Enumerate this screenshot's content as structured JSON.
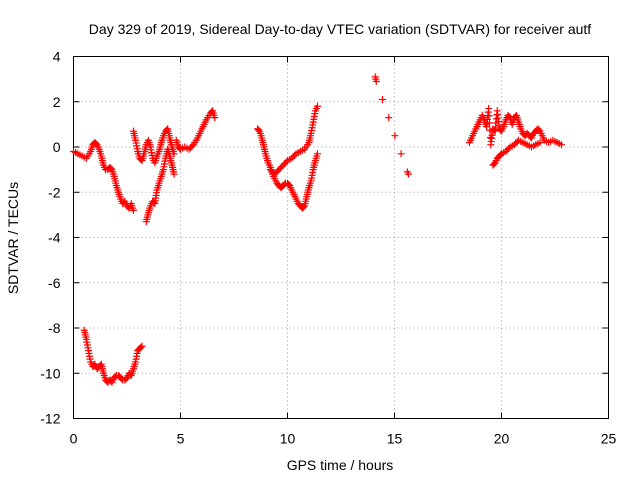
{
  "chart_data": {
    "type": "scatter",
    "title": "Day 329 of 2019, Sidereal Day-to-day VTEC variation (SDTVAR) for receiver autf",
    "xlabel": "GPS time / hours",
    "ylabel": "SDTVAR / TECUs",
    "xlim": [
      0,
      25
    ],
    "ylim": [
      -12,
      4
    ],
    "xticks": [
      "0",
      "5",
      "10",
      "15",
      "20",
      "25"
    ],
    "yticks": [
      "-12",
      "-10",
      "-8",
      "-6",
      "-4",
      "-2",
      "0",
      "2",
      "4"
    ],
    "grid": true,
    "marker": "plus",
    "color": "#ff0000",
    "series": [
      {
        "name": "SDTVAR",
        "segments": [
          [
            [
              0.0,
              -0.2
            ],
            [
              0.2,
              -0.3
            ],
            [
              0.4,
              -0.4
            ],
            [
              0.6,
              -0.5
            ],
            [
              0.8,
              -0.2
            ],
            [
              0.9,
              0.1
            ],
            [
              1.0,
              0.2
            ],
            [
              1.1,
              0.1
            ],
            [
              1.2,
              -0.1
            ],
            [
              1.3,
              -0.4
            ],
            [
              1.4,
              -0.8
            ],
            [
              1.5,
              -1.0
            ],
            [
              1.6,
              -1.0
            ],
            [
              1.7,
              -0.9
            ],
            [
              1.8,
              -1.0
            ],
            [
              1.9,
              -1.3
            ],
            [
              2.0,
              -1.7
            ],
            [
              2.1,
              -2.0
            ],
            [
              2.2,
              -2.3
            ],
            [
              2.3,
              -2.5
            ],
            [
              2.4,
              -2.4
            ],
            [
              2.5,
              -2.6
            ],
            [
              2.6,
              -2.7
            ],
            [
              2.7,
              -2.5
            ],
            [
              2.8,
              -2.8
            ]
          ],
          [
            [
              2.8,
              0.7
            ],
            [
              2.9,
              0.3
            ],
            [
              3.0,
              -0.2
            ],
            [
              3.1,
              -0.5
            ],
            [
              3.2,
              -0.6
            ],
            [
              3.3,
              -0.3
            ],
            [
              3.4,
              0.1
            ],
            [
              3.5,
              0.3
            ],
            [
              3.6,
              0.0
            ],
            [
              3.7,
              -0.5
            ],
            [
              3.8,
              -0.7
            ],
            [
              3.9,
              -0.4
            ],
            [
              4.0,
              -0.2
            ],
            [
              4.1,
              0.2
            ],
            [
              4.2,
              0.5
            ],
            [
              4.3,
              0.7
            ],
            [
              4.4,
              0.8
            ],
            [
              4.5,
              0.4
            ],
            [
              4.6,
              0.0
            ],
            [
              4.7,
              -0.3
            ]
          ],
          [
            [
              3.4,
              -3.3
            ],
            [
              3.5,
              -2.9
            ],
            [
              3.6,
              -2.6
            ],
            [
              3.7,
              -2.4
            ],
            [
              3.8,
              -2.5
            ],
            [
              3.9,
              -1.9
            ],
            [
              4.0,
              -1.6
            ],
            [
              4.1,
              -1.3
            ],
            [
              4.2,
              -1.0
            ],
            [
              4.3,
              -0.5
            ],
            [
              4.4,
              -0.1
            ],
            [
              4.5,
              -0.4
            ],
            [
              4.6,
              -0.8
            ],
            [
              4.7,
              -1.2
            ]
          ],
          [
            [
              4.8,
              0.3
            ],
            [
              4.9,
              0.0
            ],
            [
              5.0,
              -0.1
            ],
            [
              5.2,
              0.0
            ],
            [
              5.4,
              -0.1
            ],
            [
              5.6,
              0.1
            ],
            [
              5.8,
              0.4
            ],
            [
              6.0,
              0.8
            ],
            [
              6.2,
              1.2
            ],
            [
              6.4,
              1.5
            ],
            [
              6.5,
              1.6
            ],
            [
              6.6,
              1.3
            ]
          ],
          [
            [
              8.6,
              0.8
            ],
            [
              8.7,
              0.7
            ],
            [
              8.8,
              0.4
            ],
            [
              8.9,
              0.0
            ],
            [
              9.0,
              -0.4
            ],
            [
              9.1,
              -0.7
            ],
            [
              9.2,
              -0.9
            ],
            [
              9.3,
              -1.2
            ],
            [
              9.4,
              -1.4
            ],
            [
              9.5,
              -1.6
            ],
            [
              9.6,
              -1.7
            ],
            [
              9.7,
              -1.8
            ],
            [
              9.8,
              -1.7
            ],
            [
              9.9,
              -1.6
            ],
            [
              10.0,
              -1.6
            ],
            [
              10.1,
              -1.7
            ],
            [
              10.2,
              -1.9
            ],
            [
              10.3,
              -2.1
            ],
            [
              10.4,
              -2.3
            ],
            [
              10.5,
              -2.5
            ],
            [
              10.6,
              -2.6
            ],
            [
              10.7,
              -2.7
            ],
            [
              10.8,
              -2.6
            ],
            [
              10.9,
              -2.2
            ],
            [
              11.0,
              -1.8
            ],
            [
              11.1,
              -1.5
            ],
            [
              11.2,
              -1.0
            ],
            [
              11.3,
              -0.6
            ],
            [
              11.4,
              -0.3
            ]
          ],
          [
            [
              9.2,
              -1.0
            ],
            [
              9.4,
              -1.2
            ],
            [
              9.6,
              -1.0
            ],
            [
              9.8,
              -0.8
            ],
            [
              10.0,
              -0.6
            ],
            [
              10.2,
              -0.5
            ],
            [
              10.4,
              -0.3
            ],
            [
              10.6,
              -0.2
            ],
            [
              10.8,
              -0.1
            ],
            [
              11.0,
              0.2
            ],
            [
              11.1,
              0.6
            ],
            [
              11.2,
              1.1
            ],
            [
              11.3,
              1.6
            ],
            [
              11.4,
              1.8
            ]
          ],
          [
            [
              14.1,
              3.1
            ],
            [
              14.15,
              2.9
            ],
            [
              15.6,
              -1.1
            ],
            [
              15.65,
              -1.2
            ]
          ],
          [
            [
              18.5,
              0.2
            ],
            [
              18.6,
              0.4
            ],
            [
              18.7,
              0.6
            ],
            [
              18.8,
              0.8
            ],
            [
              18.9,
              1.0
            ],
            [
              19.0,
              1.2
            ],
            [
              19.1,
              1.4
            ],
            [
              19.2,
              1.2
            ],
            [
              19.3,
              0.9
            ],
            [
              19.4,
              1.7
            ],
            [
              19.5,
              0.1
            ],
            [
              19.6,
              0.8
            ],
            [
              19.7,
              0.7
            ],
            [
              19.8,
              1.6
            ],
            [
              19.9,
              0.8
            ],
            [
              20.0,
              0.7
            ],
            [
              20.1,
              0.9
            ],
            [
              20.2,
              1.2
            ],
            [
              20.3,
              1.4
            ],
            [
              20.4,
              1.3
            ],
            [
              20.5,
              1.0
            ],
            [
              20.6,
              1.3
            ],
            [
              20.7,
              1.4
            ],
            [
              20.8,
              1.1
            ],
            [
              20.9,
              0.8
            ],
            [
              21.0,
              0.6
            ],
            [
              21.1,
              0.5
            ],
            [
              21.2,
              0.6
            ],
            [
              21.3,
              0.5
            ],
            [
              21.4,
              0.4
            ],
            [
              21.5,
              0.6
            ],
            [
              21.6,
              0.7
            ],
            [
              21.7,
              0.8
            ],
            [
              21.8,
              0.7
            ],
            [
              21.9,
              0.5
            ],
            [
              22.0,
              0.3
            ],
            [
              22.2,
              0.2
            ],
            [
              22.4,
              0.3
            ],
            [
              22.6,
              0.2
            ],
            [
              22.8,
              0.1
            ]
          ],
          [
            [
              19.6,
              -0.8
            ],
            [
              19.7,
              -0.7
            ],
            [
              19.8,
              -0.5
            ],
            [
              19.9,
              -0.4
            ],
            [
              20.0,
              -0.3
            ],
            [
              20.2,
              -0.2
            ],
            [
              20.4,
              0.0
            ],
            [
              20.6,
              0.1
            ],
            [
              20.8,
              0.3
            ],
            [
              21.0,
              0.2
            ],
            [
              21.2,
              0.1
            ],
            [
              21.4,
              0.0
            ],
            [
              21.6,
              0.1
            ],
            [
              21.8,
              0.2
            ]
          ],
          [
            [
              0.5,
              -8.1
            ],
            [
              0.6,
              -8.5
            ],
            [
              0.7,
              -9.0
            ],
            [
              0.8,
              -9.5
            ],
            [
              0.9,
              -9.7
            ],
            [
              1.0,
              -9.6
            ],
            [
              1.1,
              -9.8
            ],
            [
              1.2,
              -9.7
            ],
            [
              1.3,
              -9.6
            ],
            [
              1.4,
              -10.0
            ],
            [
              1.5,
              -10.3
            ],
            [
              1.6,
              -10.4
            ],
            [
              1.7,
              -10.3
            ],
            [
              1.8,
              -10.4
            ],
            [
              1.9,
              -10.2
            ],
            [
              2.0,
              -10.1
            ],
            [
              2.1,
              -10.1
            ],
            [
              2.2,
              -10.2
            ],
            [
              2.3,
              -10.3
            ],
            [
              2.4,
              -10.3
            ],
            [
              2.5,
              -10.2
            ],
            [
              2.6,
              -10.0
            ],
            [
              2.7,
              -10.1
            ],
            [
              2.8,
              -9.8
            ],
            [
              2.9,
              -9.5
            ],
            [
              3.0,
              -9.0
            ],
            [
              3.1,
              -8.9
            ],
            [
              3.2,
              -8.8
            ]
          ]
        ]
      }
    ]
  }
}
